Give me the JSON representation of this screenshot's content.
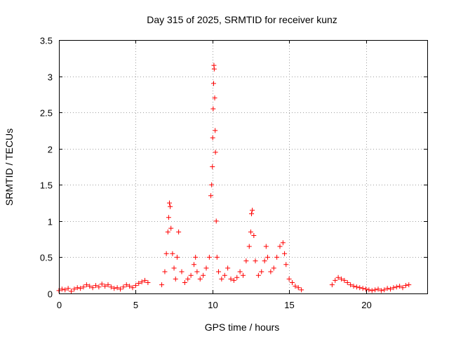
{
  "chart_data": {
    "type": "scatter",
    "title": "Day 315 of 2025, SRMTID for receiver kunz",
    "xlabel": "GPS time / hours",
    "ylabel": "SRMTID / TECUs",
    "xlim": [
      0,
      24
    ],
    "ylim": [
      0,
      3.5
    ],
    "xticks": [
      0,
      5,
      10,
      15,
      20
    ],
    "xtick_labels": [
      "0",
      "5",
      "10",
      "15",
      "20"
    ],
    "yticks": [
      0,
      0.5,
      1,
      1.5,
      2,
      2.5,
      3,
      3.5
    ],
    "ytick_labels": [
      "0",
      "0.5",
      "1",
      "1.5",
      "2",
      "2.5",
      "3",
      "3.5"
    ],
    "grid": true,
    "marker": "+",
    "series": [
      {
        "name": "SRMTID",
        "color": "#ff0000",
        "x": [
          0.0,
          0.2,
          0.4,
          0.6,
          0.8,
          1.0,
          1.2,
          1.4,
          1.6,
          1.8,
          2.0,
          2.2,
          2.4,
          2.6,
          2.8,
          3.0,
          3.2,
          3.4,
          3.6,
          3.8,
          4.0,
          4.2,
          4.4,
          4.6,
          4.8,
          5.0,
          5.2,
          5.4,
          5.6,
          5.8,
          6.7,
          6.9,
          7.0,
          7.1,
          7.15,
          7.2,
          7.25,
          7.3,
          7.4,
          7.5,
          7.6,
          7.7,
          7.8,
          8.0,
          8.2,
          8.4,
          8.6,
          8.8,
          8.9,
          9.0,
          9.2,
          9.4,
          9.6,
          9.8,
          9.9,
          9.95,
          10.0,
          10.02,
          10.05,
          10.08,
          10.1,
          10.12,
          10.15,
          10.18,
          10.2,
          10.25,
          10.3,
          10.4,
          10.6,
          10.8,
          11.0,
          11.2,
          11.4,
          11.6,
          11.8,
          12.0,
          12.2,
          12.4,
          12.5,
          12.55,
          12.6,
          12.7,
          12.8,
          13.0,
          13.2,
          13.4,
          13.5,
          13.6,
          13.8,
          14.0,
          14.2,
          14.4,
          14.6,
          14.7,
          14.8,
          15.0,
          15.2,
          15.4,
          15.6,
          15.8,
          17.8,
          18.0,
          18.2,
          18.4,
          18.6,
          18.8,
          19.0,
          19.2,
          19.4,
          19.6,
          19.8,
          20.0,
          20.2,
          20.4,
          20.6,
          20.8,
          21.0,
          21.2,
          21.4,
          21.6,
          21.8,
          22.0,
          22.2,
          22.4,
          22.6,
          22.8
        ],
        "y": [
          0.04,
          0.06,
          0.05,
          0.07,
          0.03,
          0.06,
          0.08,
          0.07,
          0.09,
          0.12,
          0.1,
          0.08,
          0.11,
          0.09,
          0.13,
          0.1,
          0.12,
          0.09,
          0.07,
          0.08,
          0.06,
          0.09,
          0.12,
          0.1,
          0.08,
          0.11,
          0.14,
          0.16,
          0.18,
          0.15,
          0.12,
          0.3,
          0.55,
          0.85,
          1.05,
          1.25,
          1.2,
          0.9,
          0.55,
          0.35,
          0.2,
          0.5,
          0.85,
          0.3,
          0.15,
          0.2,
          0.25,
          0.4,
          0.5,
          0.3,
          0.2,
          0.25,
          0.35,
          0.5,
          1.35,
          1.5,
          1.75,
          2.15,
          2.55,
          2.9,
          3.15,
          3.1,
          2.7,
          2.25,
          1.95,
          1.0,
          0.5,
          0.3,
          0.2,
          0.25,
          0.35,
          0.2,
          0.18,
          0.22,
          0.3,
          0.25,
          0.45,
          0.65,
          0.85,
          1.1,
          1.15,
          0.8,
          0.45,
          0.25,
          0.3,
          0.45,
          0.65,
          0.5,
          0.3,
          0.35,
          0.5,
          0.65,
          0.7,
          0.55,
          0.4,
          0.2,
          0.15,
          0.1,
          0.08,
          0.05,
          0.12,
          0.18,
          0.22,
          0.2,
          0.18,
          0.15,
          0.12,
          0.1,
          0.09,
          0.08,
          0.07,
          0.06,
          0.05,
          0.04,
          0.05,
          0.06,
          0.04,
          0.05,
          0.07,
          0.06,
          0.08,
          0.09,
          0.1,
          0.08,
          0.11,
          0.12
        ]
      }
    ]
  }
}
